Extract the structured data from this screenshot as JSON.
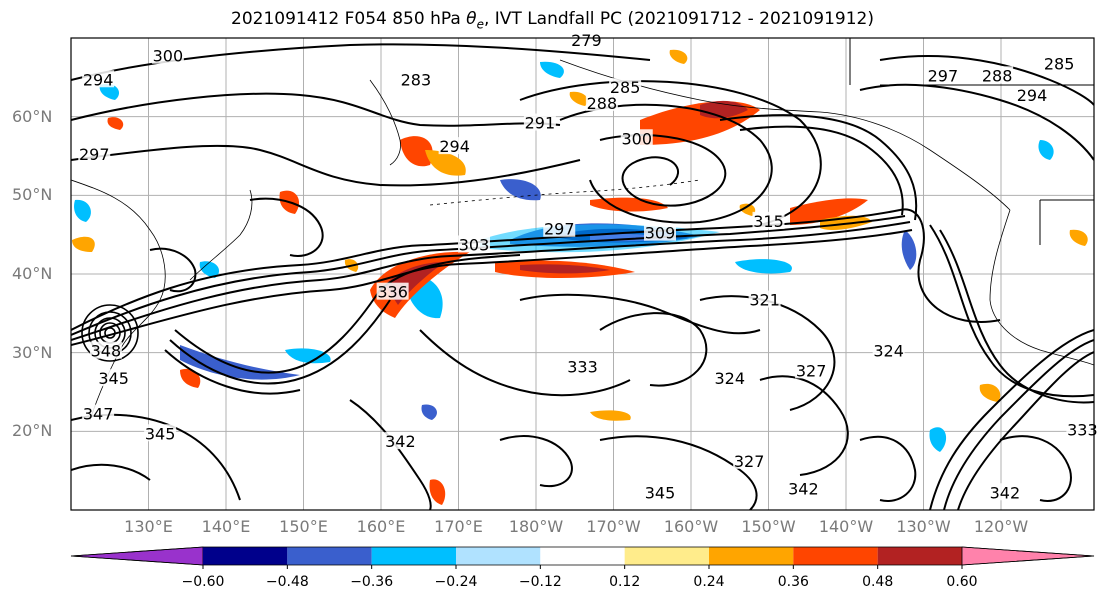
{
  "title": {
    "prefix": "2021091412 F054 850 hPa ",
    "symbol": "θ",
    "symbol_sub": "e",
    "suffix": ", IVT Landfall PC (2021091712 - 2021091912)"
  },
  "map": {
    "lon_range": [
      120,
      252
    ],
    "lat_range": [
      10,
      70
    ],
    "lat_ticks": [
      {
        "lat": 60,
        "label": "60°N"
      },
      {
        "lat": 50,
        "label": "50°N"
      },
      {
        "lat": 40,
        "label": "40°N"
      },
      {
        "lat": 30,
        "label": "30°N"
      },
      {
        "lat": 20,
        "label": "20°N"
      }
    ],
    "lon_ticks": [
      {
        "lon": 130,
        "label": "130°E"
      },
      {
        "lon": 140,
        "label": "140°E"
      },
      {
        "lon": 150,
        "label": "150°E"
      },
      {
        "lon": 160,
        "label": "160°E"
      },
      {
        "lon": 170,
        "label": "170°E"
      },
      {
        "lon": 180,
        "label": "180°W"
      },
      {
        "lon": 190,
        "label": "170°W"
      },
      {
        "lon": 200,
        "label": "160°W"
      },
      {
        "lon": 210,
        "label": "150°W"
      },
      {
        "lon": 220,
        "label": "140°W"
      },
      {
        "lon": 230,
        "label": "130°W"
      },
      {
        "lon": 240,
        "label": "120°W"
      }
    ],
    "contour_labels": [
      {
        "text": "300",
        "lon": 132.5,
        "lat": 67.5
      },
      {
        "text": "294",
        "lon": 123.5,
        "lat": 64.5
      },
      {
        "text": "297",
        "lon": 123.0,
        "lat": 55.0
      },
      {
        "text": "279",
        "lon": 186.5,
        "lat": 69.5
      },
      {
        "text": "283",
        "lon": 164.5,
        "lat": 64.5
      },
      {
        "text": "288",
        "lon": 188.5,
        "lat": 61.5
      },
      {
        "text": "285",
        "lon": 191.5,
        "lat": 63.5
      },
      {
        "text": "291",
        "lon": 180.5,
        "lat": 59.0
      },
      {
        "text": "294",
        "lon": 169.5,
        "lat": 56.0
      },
      {
        "text": "300",
        "lon": 193.0,
        "lat": 57.0
      },
      {
        "text": "297",
        "lon": 232.5,
        "lat": 65.0
      },
      {
        "text": "288",
        "lon": 239.5,
        "lat": 65.0
      },
      {
        "text": "285",
        "lon": 247.5,
        "lat": 66.5
      },
      {
        "text": "294",
        "lon": 244.0,
        "lat": 62.5
      },
      {
        "text": "303",
        "lon": 172.0,
        "lat": 43.5
      },
      {
        "text": "297",
        "lon": 183.0,
        "lat": 45.5
      },
      {
        "text": "309",
        "lon": 196.0,
        "lat": 45.0
      },
      {
        "text": "315",
        "lon": 210.0,
        "lat": 46.5
      },
      {
        "text": "321",
        "lon": 209.5,
        "lat": 36.5
      },
      {
        "text": "336",
        "lon": 161.5,
        "lat": 37.5
      },
      {
        "text": "348",
        "lon": 124.5,
        "lat": 30.0
      },
      {
        "text": "345",
        "lon": 125.5,
        "lat": 26.5
      },
      {
        "text": "347",
        "lon": 123.5,
        "lat": 22.0
      },
      {
        "text": "345",
        "lon": 131.5,
        "lat": 19.5
      },
      {
        "text": "342",
        "lon": 162.5,
        "lat": 18.5
      },
      {
        "text": "333",
        "lon": 186.0,
        "lat": 28.0
      },
      {
        "text": "324",
        "lon": 205.0,
        "lat": 26.5
      },
      {
        "text": "327",
        "lon": 215.5,
        "lat": 27.5
      },
      {
        "text": "324",
        "lon": 225.5,
        "lat": 30.0
      },
      {
        "text": "327",
        "lon": 207.5,
        "lat": 16.0
      },
      {
        "text": "345",
        "lon": 196.0,
        "lat": 12.0
      },
      {
        "text": "342",
        "lon": 214.5,
        "lat": 12.5
      },
      {
        "text": "342",
        "lon": 240.5,
        "lat": 12.0
      },
      {
        "text": "333",
        "lon": 250.5,
        "lat": 20.0
      }
    ]
  },
  "colorbar": {
    "ticks": [
      "−0.60",
      "−0.48",
      "−0.36",
      "−0.24",
      "−0.12",
      "0.12",
      "0.24",
      "0.36",
      "0.48",
      "0.60"
    ],
    "colors": [
      "#9932cc",
      "#00008b",
      "#3a5fcd",
      "#00bfff",
      "#b0e2ff",
      "#ffffff",
      "#ffec8b",
      "#ffa500",
      "#ff4500",
      "#b22222",
      "#ff82ab"
    ]
  }
}
